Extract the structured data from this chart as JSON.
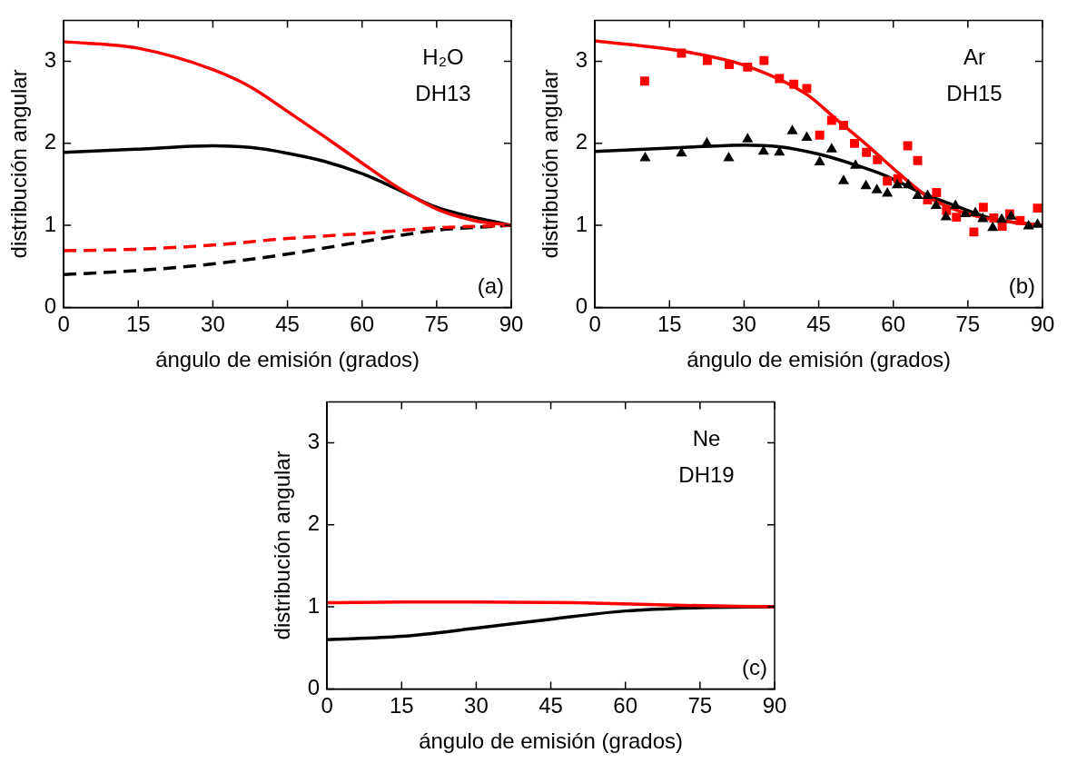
{
  "chart_data": [
    {
      "type": "line",
      "xlabel": "ángulo de emisión (grados)",
      "ylabel": "distribución angular",
      "xlim": [
        0,
        90
      ],
      "ylim": [
        0,
        3.5
      ],
      "xticks": [
        0,
        15,
        30,
        45,
        60,
        75,
        90
      ],
      "yticks": [
        0,
        1,
        2,
        3
      ],
      "annotations": [
        "H₂O",
        "DH13",
        "(a)"
      ],
      "series": [
        {
          "type": "line",
          "color": "#ff0000",
          "line_style": "solid",
          "x": [
            0,
            15,
            30,
            37.5,
            45,
            52.5,
            60,
            67.5,
            75,
            82.5,
            90
          ],
          "values": [
            3.24,
            3.16,
            2.9,
            2.69,
            2.39,
            2.08,
            1.76,
            1.45,
            1.2,
            1.06,
            1.0
          ]
        },
        {
          "type": "line",
          "color": "#000000",
          "line_style": "solid",
          "x": [
            0,
            15,
            30,
            37.5,
            45,
            52.5,
            60,
            67.5,
            75,
            90
          ],
          "values": [
            1.89,
            1.93,
            1.97,
            1.95,
            1.88,
            1.78,
            1.63,
            1.43,
            1.22,
            1.0
          ]
        },
        {
          "type": "line",
          "color": "#ff0000",
          "line_style": "dashed",
          "x": [
            0,
            15,
            30,
            45,
            60,
            75,
            90
          ],
          "values": [
            0.69,
            0.71,
            0.76,
            0.84,
            0.9,
            0.97,
            1.0
          ]
        },
        {
          "type": "line",
          "color": "#000000",
          "line_style": "dashed",
          "x": [
            0,
            15,
            30,
            45,
            60,
            75,
            90
          ],
          "values": [
            0.4,
            0.45,
            0.53,
            0.65,
            0.8,
            0.94,
            1.0
          ]
        }
      ]
    },
    {
      "type": "line",
      "xlabel": "ángulo de emisión (grados)",
      "ylabel": "distribución angular",
      "xlim": [
        0,
        90
      ],
      "ylim": [
        0,
        3.5
      ],
      "xticks": [
        0,
        15,
        30,
        45,
        60,
        75,
        90
      ],
      "yticks": [
        0,
        1,
        2,
        3
      ],
      "annotations": [
        "Ar",
        "DH15",
        "(b)"
      ],
      "series": [
        {
          "type": "scatter",
          "marker": "triangle",
          "color": "#000000",
          "x": [
            10.1,
            17.4,
            22.5,
            26.9,
            30.7,
            33.9,
            37.1,
            39.7,
            42.6,
            45.2,
            47.6,
            50,
            52.4,
            54.5,
            56.7,
            58.8,
            60.8,
            63,
            64.9,
            66.9,
            68.6,
            70.6,
            72.5,
            74.5,
            76.5,
            78,
            80,
            81.8,
            83.7,
            87.2,
            89
          ],
          "values": [
            1.82,
            1.88,
            2.0,
            1.82,
            2.05,
            1.9,
            1.89,
            2.15,
            2.07,
            1.77,
            1.93,
            1.54,
            1.73,
            1.48,
            1.43,
            1.39,
            1.49,
            1.49,
            1.36,
            1.36,
            1.24,
            1.1,
            1.24,
            1.14,
            1.15,
            1.08,
            0.97,
            1.07,
            1.11,
            0.99,
            1.01
          ]
        },
        {
          "type": "scatter",
          "marker": "square",
          "color": "#ff0000",
          "x": [
            10,
            17.4,
            22.6,
            27,
            30.7,
            34,
            37.1,
            40,
            42.6,
            45.2,
            47.6,
            50,
            52.2,
            54.6,
            56.8,
            58.8,
            60.9,
            62.9,
            64.9,
            66.9,
            68.7,
            70.7,
            72.7,
            76.2,
            78.1,
            80.2,
            81.9,
            83.4,
            85.5,
            89
          ],
          "values": [
            2.76,
            3.1,
            3.01,
            2.96,
            2.93,
            3.01,
            2.79,
            2.72,
            2.67,
            2.1,
            2.28,
            2.22,
            2.0,
            1.89,
            1.8,
            1.54,
            1.57,
            1.97,
            1.79,
            1.31,
            1.4,
            1.18,
            1.1,
            0.92,
            1.22,
            1.09,
            0.99,
            1.14,
            1.06,
            1.21
          ]
        },
        {
          "type": "line",
          "color": "#ff0000",
          "line_style": "solid",
          "x": [
            0,
            18,
            30.2,
            42.5,
            48.6,
            54.7,
            60.8,
            66.9,
            73,
            79.1,
            90
          ],
          "values": [
            3.25,
            3.12,
            2.95,
            2.6,
            2.29,
            1.98,
            1.65,
            1.35,
            1.18,
            1.08,
            1.0
          ]
        },
        {
          "type": "line",
          "color": "#000000",
          "line_style": "solid",
          "x": [
            0,
            18,
            30,
            37,
            44.9,
            52.2,
            58.3,
            64.5,
            72.4,
            80,
            90
          ],
          "values": [
            1.9,
            1.95,
            1.98,
            1.96,
            1.87,
            1.74,
            1.61,
            1.43,
            1.24,
            1.08,
            1.0
          ]
        }
      ]
    },
    {
      "type": "line",
      "xlabel": "ángulo de emisión (grados)",
      "ylabel": "distribución angular",
      "xlim": [
        0,
        90
      ],
      "ylim": [
        0,
        3.5
      ],
      "xticks": [
        0,
        15,
        30,
        45,
        60,
        75,
        90
      ],
      "yticks": [
        0,
        1,
        2,
        3
      ],
      "annotations": [
        "Ne",
        "DH19",
        "(c)"
      ],
      "series": [
        {
          "type": "line",
          "color": "#ff0000",
          "line_style": "solid",
          "x": [
            0,
            15,
            30,
            50,
            70,
            90
          ],
          "values": [
            1.05,
            1.06,
            1.06,
            1.05,
            1.02,
            1.0
          ]
        },
        {
          "type": "line",
          "color": "#000000",
          "line_style": "solid",
          "x": [
            0,
            15,
            30,
            45,
            60,
            75,
            90
          ],
          "values": [
            0.6,
            0.64,
            0.74,
            0.85,
            0.95,
            0.99,
            1.0
          ]
        }
      ]
    }
  ]
}
